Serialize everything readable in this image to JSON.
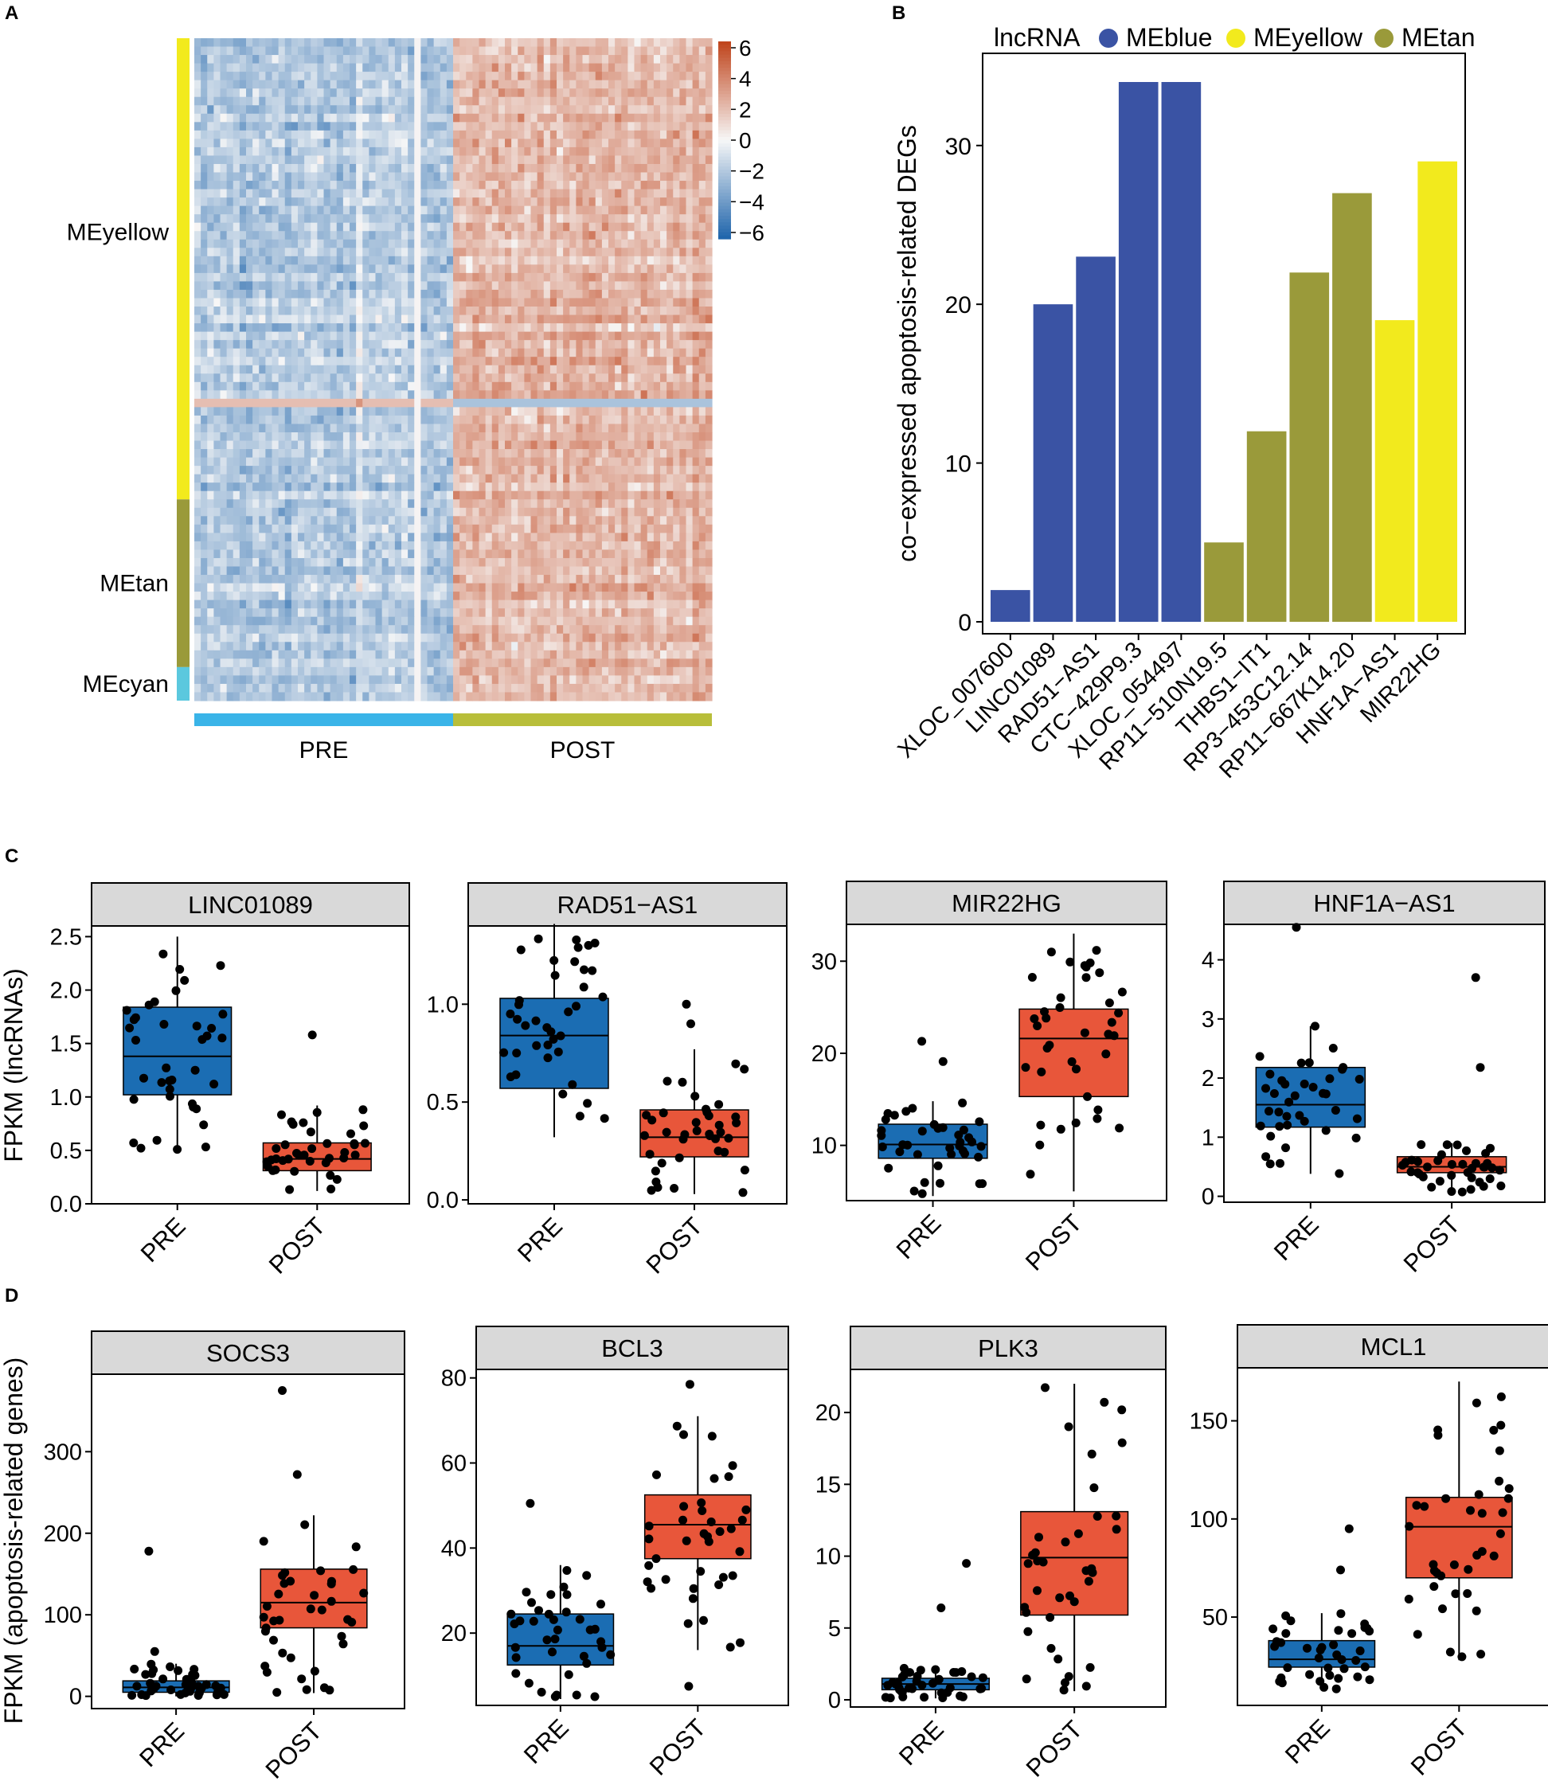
{
  "figure": {
    "panel_labels": [
      "A",
      "B",
      "C",
      "D"
    ]
  },
  "colors": {
    "pre_box": "#1b6db3",
    "post_box": "#e8563a",
    "meblue": "#3a53a4",
    "meyellow": "#f2ea1d",
    "metan": "#9a9a3a",
    "mecyan": "#5bc8de",
    "heat_low": "#2166ac",
    "heat_mid": "#f7f7f7",
    "heat_high": "#c0461e",
    "pre_bar": "#3ab4e8",
    "post_bar": "#b8be3a",
    "strip_fill": "#d9d9d9"
  },
  "chart_data": [
    {
      "id": "A",
      "type": "heatmap",
      "row_groups": [
        {
          "name": "MEyellow",
          "rows": 55,
          "color": "#f2ea1d"
        },
        {
          "name": "MEtan",
          "rows": 20,
          "color": "#9a9a3a"
        },
        {
          "name": "MEcyan",
          "rows": 4,
          "color": "#5bc8de"
        }
      ],
      "col_groups": [
        {
          "name": "PRE",
          "cols": 40,
          "color": "#3ab4e8",
          "mean": -1.6
        },
        {
          "name": "POST",
          "cols": 40,
          "color": "#b8be3a",
          "mean": 1.8
        }
      ],
      "colorbar": {
        "min": -6,
        "max": 6,
        "ticks": [
          "6",
          "4",
          "2",
          "0",
          "−2",
          "−4",
          "−6"
        ]
      }
    },
    {
      "id": "B",
      "type": "bar",
      "legend_title": "lncRNA",
      "legend": [
        {
          "name": "MEblue",
          "color": "#3a53a4"
        },
        {
          "name": "MEyellow",
          "color": "#f2ea1d"
        },
        {
          "name": "MEtan",
          "color": "#9a9a3a"
        }
      ],
      "ylabel": "co−expressed apoptosis-related DEGs",
      "ylim": [
        0,
        34
      ],
      "yticks": [
        0,
        10,
        20,
        30
      ],
      "categories": [
        "XLOC_007600",
        "LINC01089",
        "RAD51−AS1",
        "CTC−429P9.3",
        "XLOC_054497",
        "RP11−510N19.5",
        "THBS1−IT1",
        "RP3−453C12.14",
        "RP11−667K14.20",
        "HNF1A−AS1",
        "MIR22HG"
      ],
      "values": [
        2,
        20,
        23,
        34,
        34,
        5,
        12,
        22,
        27,
        19,
        29
      ],
      "groups": [
        "MEblue",
        "MEblue",
        "MEblue",
        "MEblue",
        "MEblue",
        "MEtan",
        "MEtan",
        "MEtan",
        "MEtan",
        "MEyellow",
        "MEyellow"
      ]
    },
    {
      "id": "C",
      "type": "boxplot",
      "ylabel": "FPKM (lncRNAs)",
      "categories": [
        "PRE",
        "POST"
      ],
      "panels": [
        {
          "title": "LINC01089",
          "ymin": 0,
          "ymax": 2.6,
          "yticks": [
            "0.0",
            "0.5",
            "1.0",
            "1.5",
            "2.0",
            "2.5"
          ],
          "boxes": [
            {
              "group": "PRE",
              "q1": 1.02,
              "median": 1.38,
              "q3": 1.84,
              "lo": 0.5,
              "hi": 2.5
            },
            {
              "group": "POST",
              "q1": 0.31,
              "median": 0.42,
              "q3": 0.57,
              "lo": 0.12,
              "hi": 0.92
            }
          ],
          "outliers": [
            [
              1,
              1.58
            ]
          ]
        },
        {
          "title": "RAD51−AS1",
          "ymin": -0.02,
          "ymax": 1.4,
          "yticks": [
            "0.0",
            "0.5",
            "1.0"
          ],
          "boxes": [
            {
              "group": "PRE",
              "q1": 0.57,
              "median": 0.84,
              "q3": 1.03,
              "lo": 0.32,
              "hi": 1.41
            },
            {
              "group": "POST",
              "q1": 0.22,
              "median": 0.32,
              "q3": 0.46,
              "lo": 0.03,
              "hi": 0.77
            }
          ],
          "outliers": [
            [
              1,
              1.0
            ],
            [
              1,
              0.9
            ]
          ]
        },
        {
          "title": "MIR22HG",
          "ymin": 4,
          "ymax": 34,
          "yticks": [
            "10",
            "20",
            "30"
          ],
          "boxes": [
            {
              "group": "PRE",
              "q1": 8.6,
              "median": 10.1,
              "q3": 12.3,
              "lo": 4.5,
              "hi": 14.8
            },
            {
              "group": "POST",
              "q1": 15.3,
              "median": 21.6,
              "q3": 24.8,
              "lo": 5.0,
              "hi": 33.0
            }
          ],
          "outliers": [
            [
              0,
              21.3
            ],
            [
              0,
              19.1
            ]
          ]
        },
        {
          "title": "HNF1A−AS1",
          "ymin": -0.1,
          "ymax": 4.6,
          "yticks": [
            "0",
            "1",
            "2",
            "3",
            "4"
          ],
          "boxes": [
            {
              "group": "PRE",
              "q1": 1.17,
              "median": 1.55,
              "q3": 2.18,
              "lo": 0.38,
              "hi": 2.88
            },
            {
              "group": "POST",
              "q1": 0.4,
              "median": 0.5,
              "q3": 0.67,
              "lo": 0.02,
              "hi": 0.9
            }
          ],
          "outliers": [
            [
              0,
              4.55
            ],
            [
              1,
              3.7
            ],
            [
              1,
              2.18
            ]
          ]
        }
      ]
    },
    {
      "id": "D",
      "type": "boxplot",
      "ylabel": "FPKM (apoptosis-related genes)",
      "categories": [
        "PRE",
        "POST"
      ],
      "panels": [
        {
          "title": "SOCS3",
          "ymin": -15,
          "ymax": 395,
          "yticks": [
            "0",
            "100",
            "200",
            "300"
          ],
          "boxes": [
            {
              "group": "PRE",
              "q1": 5,
              "median": 11,
              "q3": 19,
              "lo": 0,
              "hi": 40
            },
            {
              "group": "POST",
              "q1": 84,
              "median": 115,
              "q3": 156,
              "lo": 4,
              "hi": 222
            }
          ],
          "outliers": [
            [
              0,
              178
            ],
            [
              0,
              55
            ],
            [
              1,
              375
            ],
            [
              1,
              272
            ]
          ]
        },
        {
          "title": "BCL3",
          "ymin": 3,
          "ymax": 82,
          "yticks": [
            "20",
            "40",
            "60",
            "80"
          ],
          "boxes": [
            {
              "group": "PRE",
              "q1": 12.5,
              "median": 17,
              "q3": 24.5,
              "lo": 4.5,
              "hi": 36
            },
            {
              "group": "POST",
              "q1": 37.5,
              "median": 45.5,
              "q3": 52.5,
              "lo": 16,
              "hi": 71
            }
          ],
          "outliers": [
            [
              0,
              50.5
            ],
            [
              1,
              78.5
            ],
            [
              1,
              7.5
            ]
          ]
        },
        {
          "title": "PLK3",
          "ymin": -0.5,
          "ymax": 23,
          "yticks": [
            "0",
            "5",
            "10",
            "15",
            "20"
          ],
          "boxes": [
            {
              "group": "PRE",
              "q1": 0.7,
              "median": 1.1,
              "q3": 1.5,
              "lo": 0.1,
              "hi": 2.2
            },
            {
              "group": "POST",
              "q1": 5.9,
              "median": 9.9,
              "q3": 13.1,
              "lo": 0.6,
              "hi": 22.0
            }
          ],
          "outliers": [
            [
              0,
              9.5
            ],
            [
              0,
              6.4
            ]
          ]
        },
        {
          "title": "MCL1",
          "ymin": 5,
          "ymax": 177,
          "yticks": [
            "50",
            "100",
            "150"
          ],
          "boxes": [
            {
              "group": "PRE",
              "q1": 24.5,
              "median": 28.5,
              "q3": 38,
              "lo": 13,
              "hi": 52
            },
            {
              "group": "POST",
              "q1": 70,
              "median": 96,
              "q3": 111,
              "lo": 28,
              "hi": 170
            }
          ],
          "outliers": [
            [
              0,
              95
            ],
            [
              0,
              74
            ]
          ]
        }
      ]
    }
  ]
}
